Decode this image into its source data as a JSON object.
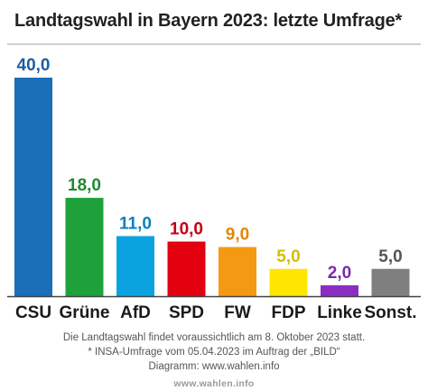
{
  "title": "Landtagswahl in Bayern 2023: letzte Umfrage*",
  "footer": {
    "line1": "Die Landtagswahl findet voraussichtlich am 8. Oktober 2023 statt.",
    "line2": "* INSA-Umfrage vom 05.04.2023 im Auftrag der „BILD“",
    "line3": "Diagramm: www.wahlen.info"
  },
  "source": "www.wahlen.info",
  "chart_data": {
    "type": "bar",
    "title": "Landtagswahl in Bayern 2023: letzte Umfrage*",
    "categories": [
      "CSU",
      "Grüne",
      "AfD",
      "SPD",
      "FW",
      "FDP",
      "Linke",
      "Sonst."
    ],
    "values": [
      40.0,
      18.0,
      11.0,
      10.0,
      9.0,
      5.0,
      2.0,
      5.0
    ],
    "value_labels": [
      "40,0",
      "18,0",
      "11,0",
      "10,0",
      "9,0",
      "5,0",
      "2,0",
      "5,0"
    ],
    "colors": [
      "#1a6fb8",
      "#1ea13a",
      "#0aa3e0",
      "#e3000f",
      "#f39a12",
      "#ffe600",
      "#8a2ec2",
      "#7f7f7f"
    ],
    "label_colors": [
      "#1a5f9e",
      "#1e8a2f",
      "#0a7fc0",
      "#c40010",
      "#e08800",
      "#d6be00",
      "#7a2aac",
      "#555555"
    ],
    "xlabel": "",
    "ylabel": "",
    "ylim": [
      0,
      40
    ],
    "grid": false,
    "legend": "none"
  }
}
